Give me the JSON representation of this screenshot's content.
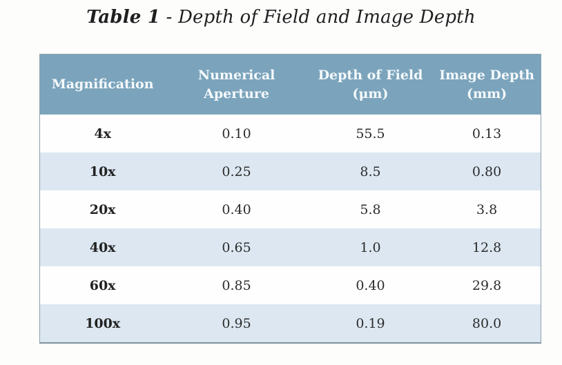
{
  "caption": {
    "label": "Table 1",
    "separator": " - ",
    "text": "Depth of Field and Image Depth"
  },
  "table": {
    "columns": [
      {
        "label": "Magnification",
        "unit": ""
      },
      {
        "label": "Numerical Aperture",
        "unit": ""
      },
      {
        "label": "Depth of Field",
        "unit": "(μm)"
      },
      {
        "label": "Image Depth",
        "unit": "(mm)"
      }
    ],
    "rows": [
      [
        "4x",
        "0.10",
        "55.5",
        "0.13"
      ],
      [
        "10x",
        "0.25",
        "8.5",
        "0.80"
      ],
      [
        "20x",
        "0.40",
        "5.8",
        "3.8"
      ],
      [
        "40x",
        "0.65",
        "1.0",
        "12.8"
      ],
      [
        "60x",
        "0.85",
        "0.40",
        "29.8"
      ],
      [
        "100x",
        "0.95",
        "0.19",
        "80.0"
      ]
    ]
  },
  "colors": {
    "header_bg": "#7ba4bc",
    "header_text": "#f5f9fb",
    "row_bg": "#fefefe",
    "row_alt_bg": "#dce7f1",
    "body_text": "#2b2b2b",
    "border": "#8ca0ab"
  }
}
